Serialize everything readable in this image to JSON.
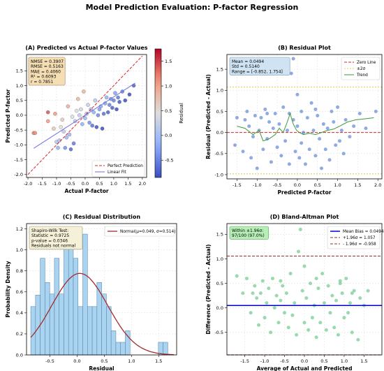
{
  "suptitle": "Model Prediction Evaluation: P-factor Regression",
  "chart_data": [
    {
      "type": "scatter",
      "panel": "A",
      "title": "(A) Predicted vs Actual P-factor Values",
      "xlabel": "Actual P-factor",
      "ylabel": "Predicted P-factor",
      "xlim": [
        -2.05,
        2.15
      ],
      "ylim": [
        -2.1,
        2.05
      ],
      "xticks": [
        -2.0,
        -1.5,
        -1.0,
        -0.5,
        0.0,
        0.5,
        1.0,
        1.5,
        2.0
      ],
      "yticks": [
        -2.0,
        -1.5,
        -1.0,
        -0.5,
        0.0,
        0.5,
        1.0,
        1.5
      ],
      "grid": true,
      "stats_lines": [
        "NMSE = 0.3907",
        "RMSE = 0.5163",
        "MAE = 0.4060",
        "R² = 0.6093",
        "r = 0.7851"
      ],
      "legend": [
        "Perfect Prediction",
        "Linear Fit"
      ],
      "legend_position": "lower-right",
      "colorbar": {
        "label": "Residual",
        "ticks": [
          -0.5,
          0.0,
          0.5,
          1.0,
          1.5
        ],
        "range": [
          -0.85,
          1.75
        ]
      },
      "linear_fit": {
        "slope": 0.62,
        "intercept": 0.0
      },
      "points": [
        [
          -1.8,
          -0.6,
          1.2
        ],
        [
          -1.75,
          -0.6,
          1.15
        ],
        [
          -1.3,
          -0.2,
          1.1
        ],
        [
          -1.3,
          0.1,
          1.4
        ],
        [
          -1.1,
          -0.45,
          0.65
        ],
        [
          -1.05,
          0.05,
          1.1
        ],
        [
          -1.0,
          -0.9,
          0.1
        ],
        [
          -0.95,
          -1.1,
          -0.15
        ],
        [
          -0.9,
          -0.85,
          0.05
        ],
        [
          -0.85,
          -0.4,
          0.45
        ],
        [
          -0.8,
          -0.15,
          0.65
        ],
        [
          -0.75,
          -0.55,
          0.2
        ],
        [
          -0.7,
          -1.1,
          -0.4
        ],
        [
          -0.65,
          -0.75,
          -0.1
        ],
        [
          -0.6,
          0.3,
          0.9
        ],
        [
          -0.55,
          -0.65,
          -0.1
        ],
        [
          -0.5,
          -1.15,
          -0.65
        ],
        [
          -0.45,
          -0.05,
          0.4
        ],
        [
          -0.4,
          -0.95,
          -0.55
        ],
        [
          -0.35,
          -0.2,
          0.15
        ],
        [
          -0.3,
          0.15,
          0.45
        ],
        [
          -0.25,
          0.55,
          0.8
        ],
        [
          -0.2,
          0.0,
          0.2
        ],
        [
          -0.15,
          0.2,
          0.35
        ],
        [
          -0.1,
          -0.3,
          -0.2
        ],
        [
          -0.05,
          0.8,
          0.85
        ],
        [
          0.0,
          -0.1,
          -0.1
        ],
        [
          0.05,
          0.05,
          0.0
        ],
        [
          0.1,
          0.35,
          0.25
        ],
        [
          0.15,
          -0.25,
          -0.4
        ],
        [
          0.2,
          0.2,
          0.0
        ],
        [
          0.25,
          -0.35,
          -0.6
        ],
        [
          0.3,
          0.1,
          -0.2
        ],
        [
          0.35,
          0.5,
          0.15
        ],
        [
          0.4,
          -0.4,
          -0.8
        ],
        [
          0.45,
          0.0,
          -0.45
        ],
        [
          0.5,
          0.2,
          -0.3
        ],
        [
          0.55,
          0.3,
          -0.25
        ],
        [
          0.6,
          -0.45,
          -1.05
        ],
        [
          0.65,
          0.05,
          -0.6
        ],
        [
          0.7,
          0.4,
          -0.3
        ],
        [
          0.75,
          0.6,
          -0.15
        ],
        [
          0.8,
          0.1,
          -0.7
        ],
        [
          0.85,
          0.35,
          -0.5
        ],
        [
          0.9,
          0.55,
          -0.35
        ],
        [
          0.95,
          0.25,
          -0.7
        ],
        [
          1.0,
          0.5,
          -0.5
        ],
        [
          1.05,
          0.75,
          -0.3
        ],
        [
          1.1,
          0.2,
          -0.9
        ],
        [
          1.15,
          0.6,
          -0.55
        ],
        [
          1.2,
          0.45,
          -0.75
        ],
        [
          1.3,
          0.8,
          -0.5
        ],
        [
          1.4,
          0.5,
          -0.9
        ],
        [
          1.55,
          0.7,
          -0.85
        ],
        [
          1.7,
          1.0,
          -0.7
        ]
      ]
    },
    {
      "type": "scatter",
      "panel": "B",
      "title": "(B) Residual Plot",
      "xlabel": "Predicted P-factor",
      "ylabel": "Residual (Predicted - Actual)",
      "xlim": [
        -1.75,
        2.1
      ],
      "ylim": [
        -1.1,
        1.85
      ],
      "xticks": [
        -1.5,
        -1.0,
        -0.5,
        0.0,
        0.5,
        1.0,
        1.5,
        2.0
      ],
      "yticks": [
        -1.0,
        -0.5,
        0.0,
        0.5,
        1.0,
        1.5
      ],
      "grid": true,
      "stats_lines": [
        "Mean = 0.0494",
        "Std = 0.5140",
        "Range = [-0.852, 1.754]"
      ],
      "legend": [
        "Zero Line",
        "±2σ",
        "Trend"
      ],
      "legend_position": "top-right",
      "sigma_lines": [
        1.0774,
        -0.9786
      ],
      "trend": [
        [
          -1.5,
          0.15
        ],
        [
          -1.3,
          0.1
        ],
        [
          -1.1,
          -0.05
        ],
        [
          -0.95,
          0.05
        ],
        [
          -0.85,
          -0.2
        ],
        [
          -0.7,
          -0.15
        ],
        [
          -0.55,
          -0.05
        ],
        [
          -0.45,
          0.1
        ],
        [
          -0.35,
          0.0
        ],
        [
          -0.25,
          0.25
        ],
        [
          -0.18,
          0.45
        ],
        [
          -0.1,
          0.2
        ],
        [
          -0.02,
          0.05
        ],
        [
          0.05,
          0.0
        ],
        [
          0.15,
          -0.05
        ],
        [
          0.3,
          -0.02
        ],
        [
          0.45,
          -0.05
        ],
        [
          0.6,
          0.0
        ],
        [
          0.75,
          0.05
        ],
        [
          0.9,
          0.08
        ],
        [
          1.05,
          0.15
        ],
        [
          1.25,
          0.25
        ],
        [
          1.45,
          0.3
        ],
        [
          1.65,
          0.32
        ],
        [
          1.9,
          0.35
        ]
      ],
      "points": [
        [
          -1.55,
          -0.3
        ],
        [
          -1.5,
          0.35
        ],
        [
          -1.35,
          -0.45
        ],
        [
          -1.3,
          0.3
        ],
        [
          -1.25,
          0.5
        ],
        [
          -1.2,
          0.15
        ],
        [
          -1.15,
          -0.6
        ],
        [
          -1.1,
          -0.1
        ],
        [
          -1.05,
          0.4
        ],
        [
          -1.0,
          -0.85
        ],
        [
          -0.95,
          0.05
        ],
        [
          -0.9,
          0.35
        ],
        [
          -0.85,
          -0.4
        ],
        [
          -0.8,
          0.55
        ],
        [
          -0.75,
          -0.15
        ],
        [
          -0.7,
          0.25
        ],
        [
          -0.65,
          -0.7
        ],
        [
          -0.6,
          0.1
        ],
        [
          -0.55,
          0.45
        ],
        [
          -0.5,
          -0.35
        ],
        [
          -0.45,
          0.2
        ],
        [
          -0.4,
          -0.55
        ],
        [
          -0.35,
          0.6
        ],
        [
          -0.3,
          -0.2
        ],
        [
          -0.25,
          0.05
        ],
        [
          -0.2,
          -0.75
        ],
        [
          -0.15,
          1.4
        ],
        [
          -0.1,
          1.75
        ],
        [
          -0.1,
          0.3
        ],
        [
          -0.05,
          -0.45
        ],
        [
          0.0,
          0.9
        ],
        [
          0.0,
          0.15
        ],
        [
          0.05,
          -0.6
        ],
        [
          0.1,
          0.5
        ],
        [
          0.1,
          -0.25
        ],
        [
          0.15,
          0.0
        ],
        [
          0.2,
          -0.75
        ],
        [
          0.25,
          0.35
        ],
        [
          0.3,
          -0.4
        ],
        [
          0.35,
          0.7
        ],
        [
          0.4,
          0.05
        ],
        [
          0.45,
          -0.55
        ],
        [
          0.5,
          0.4
        ],
        [
          0.55,
          -0.15
        ],
        [
          0.6,
          -0.85
        ],
        [
          0.65,
          0.2
        ],
        [
          0.7,
          -0.4
        ],
        [
          0.75,
          0.1
        ],
        [
          0.8,
          -0.65
        ],
        [
          0.85,
          0.5
        ],
        [
          0.9,
          0.25
        ],
        [
          0.95,
          -0.3
        ],
        [
          1.0,
          0.6
        ],
        [
          1.05,
          -0.2
        ],
        [
          1.1,
          0.05
        ],
        [
          1.15,
          -0.5
        ],
        [
          1.2,
          0.3
        ],
        [
          1.3,
          -0.1
        ],
        [
          1.4,
          0.15
        ],
        [
          1.55,
          0.45
        ],
        [
          1.7,
          0.1
        ],
        [
          1.95,
          0.5
        ],
        [
          -0.75,
          0.45
        ],
        [
          -0.2,
          0.45
        ],
        [
          0.45,
          0.55
        ]
      ]
    },
    {
      "type": "bar",
      "panel": "C",
      "title": "(C) Residual Distribution",
      "xlabel": "Residual",
      "ylabel": "Probability Density",
      "xlim": [
        -0.93,
        1.83
      ],
      "ylim": [
        0,
        1.25
      ],
      "xticks": [
        -0.5,
        0.0,
        0.5,
        1.0,
        1.5
      ],
      "yticks": [
        0.0,
        0.2,
        0.4,
        0.6,
        0.8,
        1.0,
        1.2
      ],
      "grid": true,
      "bin_start": -0.852,
      "bin_width": 0.0869,
      "values": [
        0.46,
        0.57,
        0.92,
        0.69,
        0.58,
        0.92,
        0.58,
        1.04,
        1.15,
        0.92,
        0.46,
        1.15,
        0.46,
        0.46,
        0.69,
        0.58,
        0.46,
        0.23,
        0.12,
        0.12,
        0.23,
        0.0,
        0.0,
        0.0,
        0.0,
        0.0,
        0.0,
        0.12,
        0.12,
        0.0
      ],
      "normal_fit": {
        "mu": 0.049,
        "sigma": 0.514
      },
      "legend": [
        "Normal(μ=0.049, σ=0.514)"
      ],
      "legend_position": "top-right",
      "stats_lines": [
        "Shapiro-Wilk Test:",
        "Statistic = 0.9725",
        "p-value = 0.0346",
        "Residuals not normal"
      ]
    },
    {
      "type": "scatter",
      "panel": "D",
      "title": "(D) Bland-Altman Plot",
      "xlabel": "Average of Actual and Predicted",
      "ylabel": "Difference (Predicted - Actual)",
      "xlim": [
        -1.95,
        1.95
      ],
      "ylim": [
        -0.96,
        1.72
      ],
      "xticks": [
        -1.5,
        -1.0,
        -0.5,
        0.0,
        0.5,
        1.0,
        1.5
      ],
      "yticks": [
        -0.5,
        0.0,
        0.5,
        1.0,
        1.5
      ],
      "grid": true,
      "mean_bias": 0.0494,
      "upper_loa": 1.057,
      "lower_loa": -0.958,
      "legend": [
        "Mean Bias = 0.0494",
        "+1.96σ = 1.057",
        "- 1.96σ = -0.958"
      ],
      "legend_position": "top-right",
      "stats_lines": [
        "Within ±1.96σ:",
        "97/100 (97.0%)"
      ],
      "points": [
        [
          -1.7,
          0.65
        ],
        [
          -1.55,
          0.3
        ],
        [
          -1.45,
          0.6
        ],
        [
          -1.35,
          -0.1
        ],
        [
          -1.25,
          0.45
        ],
        [
          -1.2,
          0.2
        ],
        [
          -1.15,
          -0.35
        ],
        [
          -1.1,
          0.3
        ],
        [
          -1.05,
          0.55
        ],
        [
          -1.0,
          -0.2
        ],
        [
          -0.95,
          0.1
        ],
        [
          -0.9,
          0.4
        ],
        [
          -0.85,
          -0.5
        ],
        [
          -0.8,
          0.6
        ],
        [
          -0.75,
          0.0
        ],
        [
          -0.7,
          0.25
        ],
        [
          -0.65,
          -0.3
        ],
        [
          -0.6,
          0.15
        ],
        [
          -0.55,
          0.45
        ],
        [
          -0.5,
          -0.1
        ],
        [
          -0.45,
          0.3
        ],
        [
          -0.4,
          -0.4
        ],
        [
          -0.35,
          0.7
        ],
        [
          -0.3,
          -0.15
        ],
        [
          -0.25,
          0.1
        ],
        [
          -0.2,
          -0.55
        ],
        [
          -0.15,
          1.15
        ],
        [
          -0.1,
          1.6
        ],
        [
          -0.05,
          0.35
        ],
        [
          0.0,
          -0.3
        ],
        [
          0.0,
          0.85
        ],
        [
          0.05,
          0.2
        ],
        [
          0.1,
          -0.45
        ],
        [
          0.15,
          0.5
        ],
        [
          0.2,
          -0.2
        ],
        [
          0.25,
          0.05
        ],
        [
          0.3,
          -0.6
        ],
        [
          0.35,
          0.4
        ],
        [
          0.4,
          -0.3
        ],
        [
          0.45,
          0.7
        ],
        [
          0.5,
          0.1
        ],
        [
          0.55,
          -0.45
        ],
        [
          0.6,
          0.45
        ],
        [
          0.65,
          -0.1
        ],
        [
          0.7,
          0.25
        ],
        [
          0.75,
          -0.4
        ],
        [
          0.8,
          0.15
        ],
        [
          0.85,
          -0.55
        ],
        [
          0.9,
          0.5
        ],
        [
          0.95,
          0.3
        ],
        [
          1.0,
          -0.2
        ],
        [
          1.05,
          0.6
        ],
        [
          1.1,
          -0.1
        ],
        [
          1.15,
          0.1
        ],
        [
          1.2,
          -0.5
        ],
        [
          1.25,
          0.35
        ],
        [
          1.35,
          -0.65
        ],
        [
          1.4,
          0.2
        ],
        [
          1.5,
          0.05
        ],
        [
          1.6,
          0.35
        ],
        [
          -1.3,
          0.3
        ],
        [
          -0.6,
          0.55
        ],
        [
          0.3,
          0.6
        ],
        [
          0.9,
          0.55
        ],
        [
          1.2,
          0.3
        ]
      ]
    }
  ]
}
